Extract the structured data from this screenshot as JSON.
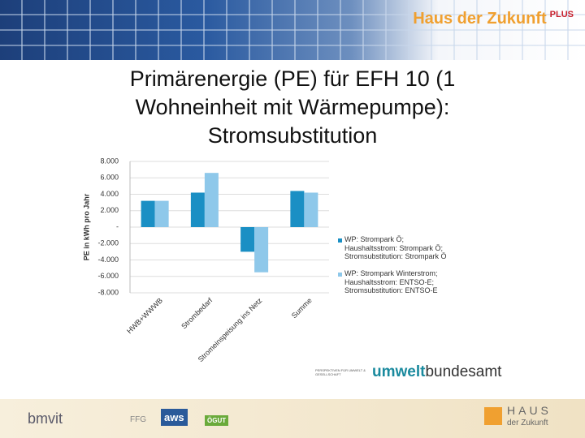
{
  "header": {
    "brand": "Haus der Zukunft",
    "brand_suffix": "PLUS"
  },
  "chart_data": {
    "type": "bar",
    "title": "Primärenergie (PE) für EFH 10 (1 Wohneinheit mit Wärmepumpe): Stromsubstitution",
    "y_label": "PE in kWh pro Jahr",
    "categories": [
      "HWB+WWWB",
      "Strombedarf",
      "Stromeinspeisung ins Netz",
      "Summe"
    ],
    "series": [
      {
        "name": "WP: Strompark Ö;\nHaushaltsstrom: Strompark Ö;\nStromsubstitution: Strompark Ö",
        "color": "#1a8fc4",
        "values": [
          3200,
          4200,
          -3000,
          4400
        ]
      },
      {
        "name": "WP: Strompark Winterstrom;\nHaushaltsstrom: ENTSO-E;\nStromsubstitution: ENTSO-E",
        "color": "#8ec8ea",
        "values": [
          3200,
          6600,
          -5500,
          4200
        ]
      }
    ],
    "ylim": [
      -8000,
      8000
    ],
    "yticks": [
      {
        "value": 8000,
        "label": "8.000"
      },
      {
        "value": 6000,
        "label": "6.000"
      },
      {
        "value": 4000,
        "label": "4.000"
      },
      {
        "value": 2000,
        "label": "2.000"
      },
      {
        "value": 0,
        "label": "-"
      },
      {
        "value": -2000,
        "label": "-2.000"
      },
      {
        "value": -4000,
        "label": "-4.000"
      },
      {
        "value": -6000,
        "label": "-6.000"
      },
      {
        "value": -8000,
        "label": "-8.000"
      }
    ],
    "grid": true,
    "legend": "right"
  },
  "logos": {
    "uba_sub": "PERSPEKTIVEN FÜR UMWELT & GESELLSCHAFT",
    "uba_a": "umwelt",
    "uba_b": "bundesamt",
    "bmvit": "bmvit",
    "ffg": "FFG",
    "aws": "aws",
    "oegut": "ÖGUT",
    "hdz_a": "HAUS",
    "hdz_b": "der Zukunft"
  }
}
